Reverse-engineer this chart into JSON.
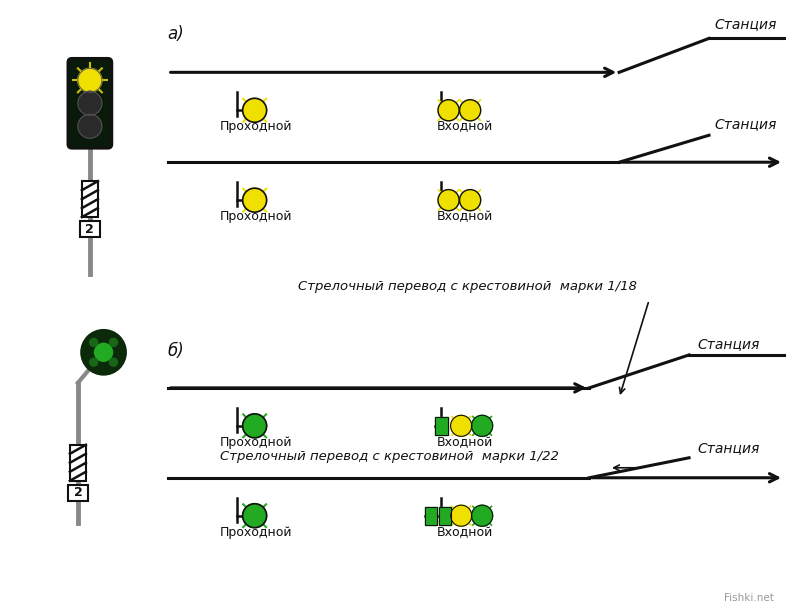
{
  "bg_color": "#ffffff",
  "title_a": "а)",
  "title_b": "б)",
  "text_stantsiya": "Станция",
  "text_prokhodnoy": "Проходной",
  "text_vkhodnoy": "Входной",
  "text_switch_18": "Стрелочный перевод с крестовиной  марки 1/18",
  "text_switch_22": "Стрелочный перевод с крестовиной  марки 1/22",
  "fishki_text": "Fishki.net",
  "yellow": "#f0e000",
  "green": "#22aa22",
  "black": "#111111",
  "white": "#ffffff",
  "gray": "#888888",
  "dark_body_a": "#0a1a0a",
  "dark_body_b": "#0a2a0a"
}
